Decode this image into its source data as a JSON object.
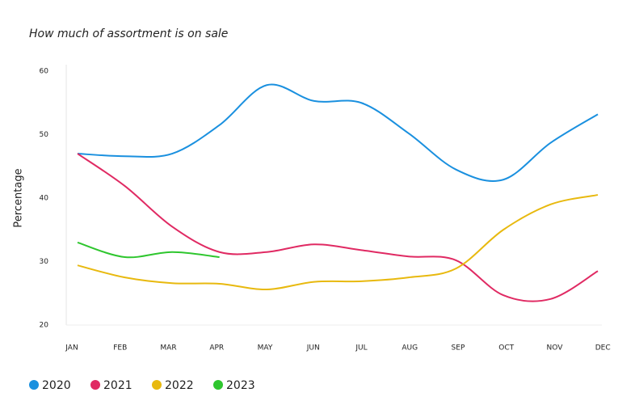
{
  "chart_data": {
    "type": "line",
    "title": "How much of assortment is on sale",
    "y_label": "Percentage",
    "categories": [
      "JAN",
      "FEB",
      "MAR",
      "APR",
      "MAY",
      "JUN",
      "JUL",
      "AUG",
      "SEP",
      "OCT",
      "NOV",
      "DEC"
    ],
    "series": [
      {
        "name": "2020",
        "color": "#1a90df",
        "values": [
          47,
          46.6,
          47,
          51.5,
          57.8,
          55.3,
          55,
          50.2,
          44.5,
          42.9,
          48.7,
          53.2
        ]
      },
      {
        "name": "2021",
        "color": "#e02a63",
        "values": [
          47,
          41.9,
          35.5,
          31.5,
          31.5,
          32.7,
          31.8,
          30.8,
          30.2,
          24.7,
          24.1,
          28.5
        ]
      },
      {
        "name": "2022",
        "color": "#e8b90f",
        "values": [
          29.4,
          27.5,
          26.6,
          26.5,
          25.6,
          26.8,
          26.9,
          27.5,
          28.9,
          35,
          39,
          40.5
        ]
      },
      {
        "name": "2023",
        "color": "#2ec62e",
        "values": [
          33,
          30.7,
          31.5,
          30.7,
          null,
          null,
          null,
          null,
          null,
          null,
          null,
          null
        ]
      }
    ],
    "ylim": [
      20,
      60
    ],
    "yticks": [
      20,
      30,
      40,
      50,
      60
    ],
    "grid": false,
    "legend": "bottom"
  }
}
